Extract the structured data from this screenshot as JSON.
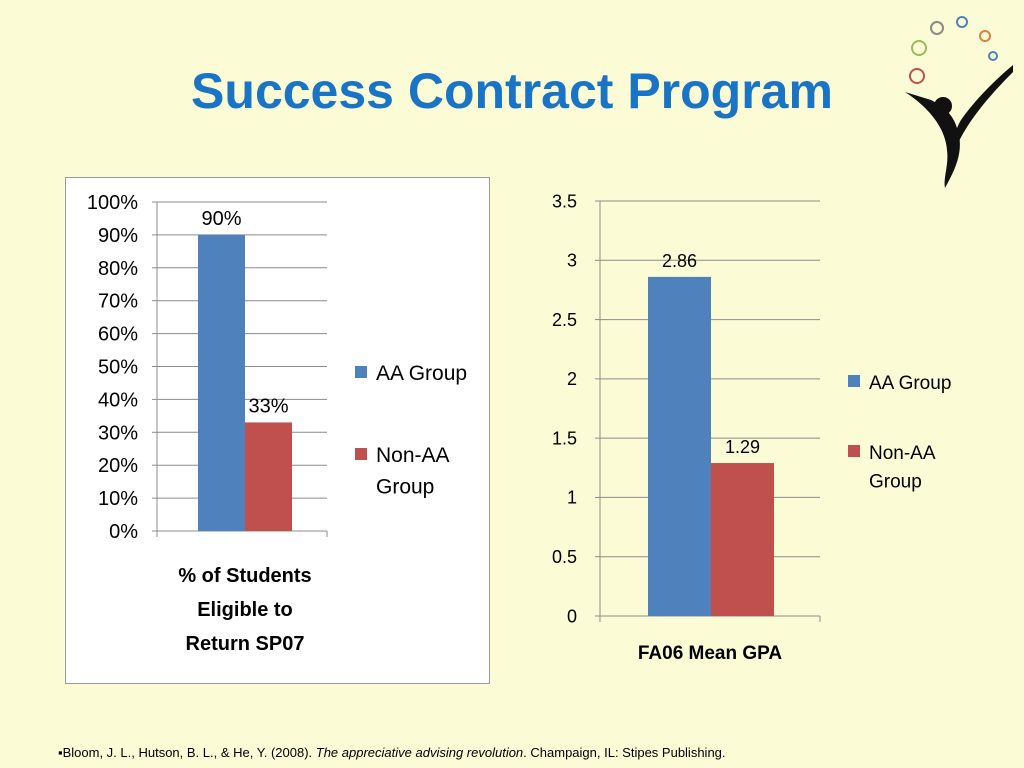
{
  "slide": {
    "title": "Success Contract Program",
    "citation": {
      "bullet": "▪",
      "authors": "Bloom, J. L., Hutson, B. L., & He, Y. (2008). ",
      "work": "The appreciative advising revolution",
      "publisher": ". Champaign, IL:  Stipes Publishing."
    }
  },
  "colors": {
    "aa": "#4f81bd",
    "non_aa": "#c0504d",
    "title": "#1a74c5"
  },
  "chart_data": [
    {
      "type": "bar",
      "categories": [
        "% of Students Eligible to Return SP07"
      ],
      "xlabel_lines": [
        "% of Students",
        "Eligible to",
        "Return SP07"
      ],
      "series": [
        {
          "name": "AA Group",
          "values": [
            90
          ],
          "label": "90%"
        },
        {
          "name": "Non-AA Group",
          "values": [
            33
          ],
          "label": "33%"
        }
      ],
      "ylim": [
        0,
        100
      ],
      "yticks": [
        "0%",
        "10%",
        "20%",
        "30%",
        "40%",
        "50%",
        "60%",
        "70%",
        "80%",
        "90%",
        "100%"
      ],
      "legend": [
        "AA Group",
        "Non-AA",
        "Group"
      ],
      "legend_position": "right",
      "grid": true
    },
    {
      "type": "bar",
      "categories": [
        "FA06 Mean GPA"
      ],
      "xlabel_lines": [
        "FA06 Mean GPA"
      ],
      "series": [
        {
          "name": "AA Group",
          "values": [
            2.86
          ],
          "label": "2.86"
        },
        {
          "name": "Non-AA Group",
          "values": [
            1.29
          ],
          "label": "1.29"
        }
      ],
      "ylim": [
        0,
        3.5
      ],
      "yticks": [
        "0",
        "0.5",
        "1",
        "1.5",
        "2",
        "2.5",
        "3",
        "3.5"
      ],
      "legend": [
        "AA Group",
        "Non-AA",
        "Group"
      ],
      "legend_position": "right",
      "grid": true
    }
  ]
}
